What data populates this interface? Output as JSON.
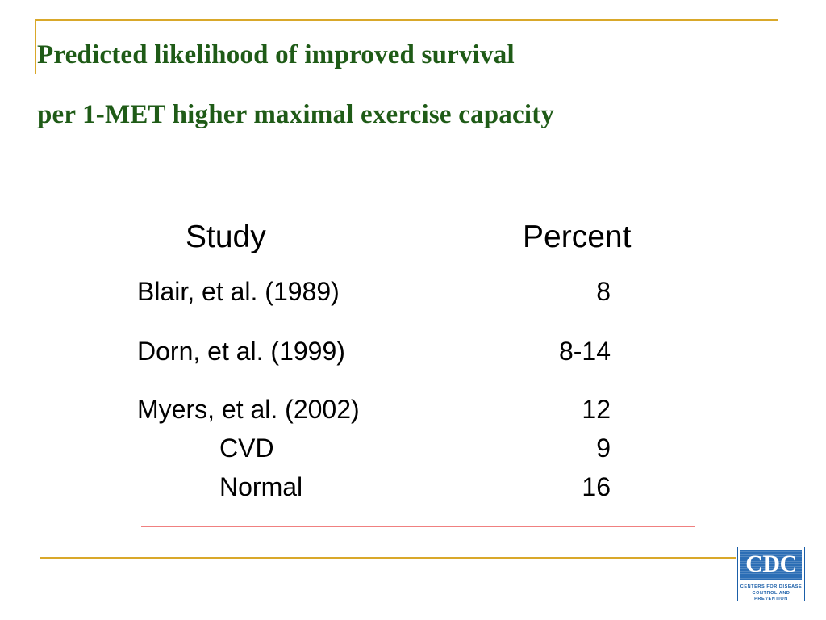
{
  "slide": {
    "title_line1": "Predicted likelihood of improved survival",
    "title_line2": "per 1-MET higher maximal exercise capacity"
  },
  "table": {
    "headers": {
      "study": "Study",
      "percent": "Percent"
    },
    "rows": [
      {
        "study": "Blair, et al. (1989)",
        "percent": "8"
      },
      {
        "study": "Dorn, et al. (1999)",
        "percent": "8-14"
      },
      {
        "study": "Myers, et al. (2002)",
        "percent": "12"
      },
      {
        "study": "CVD",
        "percent": "9"
      },
      {
        "study": "Normal",
        "percent": "16"
      }
    ]
  },
  "logo": {
    "letters": "CDC",
    "line1": "CENTERS FOR DISEASE",
    "line2": "CONTROL AND PREVENTION"
  },
  "colors": {
    "title": "#1f5b17",
    "frame": "#d9a82a",
    "rule": "#f08080",
    "logo_blue": "#2c6eb5"
  }
}
